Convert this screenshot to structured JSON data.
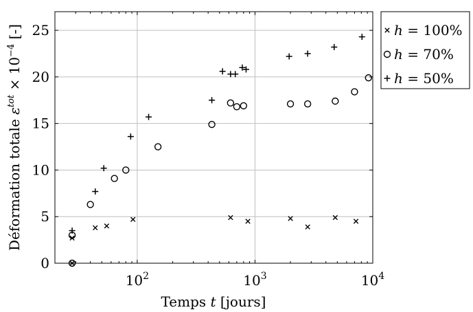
{
  "chart_data": {
    "type": "scatter",
    "xlabel": "Temps t [jours]",
    "ylabel": "Déformation totale ε^tot × 10^−4 [-]",
    "xscale": "log",
    "xlim": [
      20,
      10000
    ],
    "ylim": [
      0,
      27
    ],
    "grid": true,
    "legend_position": "right-outside-top",
    "x_ticks": [
      {
        "value": 100,
        "base": "10",
        "exp": "2"
      },
      {
        "value": 1000,
        "base": "10",
        "exp": "3"
      },
      {
        "value": 10000,
        "base": "10",
        "exp": "4"
      }
    ],
    "y_ticks": [
      0,
      5,
      10,
      15,
      20,
      25
    ],
    "series": [
      {
        "name": "h = 100%",
        "marker": "x",
        "points": [
          [
            28,
            0
          ],
          [
            28,
            2.7
          ],
          [
            44,
            3.8
          ],
          [
            55,
            4.0
          ],
          [
            92,
            4.7
          ],
          [
            620,
            4.9
          ],
          [
            870,
            4.5
          ],
          [
            2000,
            4.8
          ],
          [
            2800,
            3.9
          ],
          [
            4800,
            4.9
          ],
          [
            7200,
            4.5
          ]
        ]
      },
      {
        "name": "h = 70%",
        "marker": "circle",
        "points": [
          [
            28,
            0
          ],
          [
            28,
            3.0
          ],
          [
            40,
            6.3
          ],
          [
            64,
            9.1
          ],
          [
            80,
            10.0
          ],
          [
            150,
            12.5
          ],
          [
            430,
            14.9
          ],
          [
            620,
            17.2
          ],
          [
            700,
            16.8
          ],
          [
            800,
            16.9
          ],
          [
            2000,
            17.1
          ],
          [
            2800,
            17.1
          ],
          [
            4800,
            17.4
          ],
          [
            7000,
            18.4
          ],
          [
            9200,
            19.9
          ]
        ]
      },
      {
        "name": "h = 50%",
        "marker": "plus",
        "points": [
          [
            28,
            3.5
          ],
          [
            44,
            7.7
          ],
          [
            52,
            10.2
          ],
          [
            88,
            13.6
          ],
          [
            125,
            15.7
          ],
          [
            430,
            17.5
          ],
          [
            530,
            20.6
          ],
          [
            620,
            20.3
          ],
          [
            680,
            20.3
          ],
          [
            780,
            21.0
          ],
          [
            840,
            20.8
          ],
          [
            1950,
            22.2
          ],
          [
            2800,
            22.5
          ],
          [
            4700,
            23.2
          ],
          [
            8100,
            24.3
          ]
        ]
      }
    ]
  },
  "ylabel_parts": {
    "main": "Déformation totale ",
    "eps": "ε",
    "eps_sup": "tot",
    "times": " × 10",
    "pow_sup": "−4",
    "unit": " [-]"
  },
  "xlabel_parts": {
    "pre": "Temps ",
    "var": "t",
    "post": " [jours]"
  },
  "legend_parts": [
    {
      "var": "h",
      "value": " = 100%"
    },
    {
      "var": "h",
      "value": " = 70%"
    },
    {
      "var": "h",
      "value": " = 50%"
    }
  ]
}
